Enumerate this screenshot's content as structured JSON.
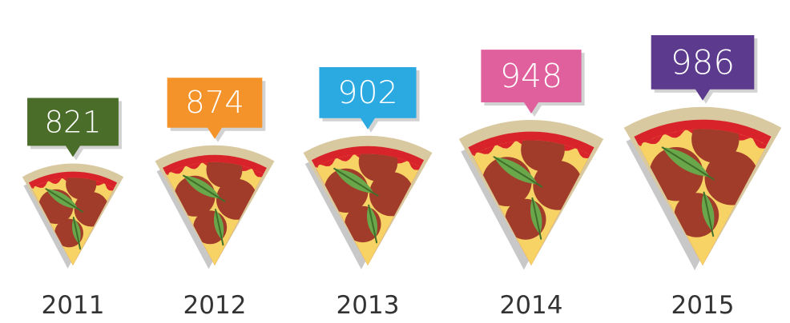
{
  "chart_data": {
    "type": "bar",
    "categories": [
      "2011",
      "2012",
      "2013",
      "2014",
      "2015"
    ],
    "values": [
      821,
      874,
      902,
      948,
      986
    ],
    "marker_colors": [
      "#4a6e2a",
      "#f3932a",
      "#2aaae1",
      "#e0609e",
      "#5c3a8e"
    ],
    "title": "",
    "xlabel": "",
    "ylabel": "",
    "mark_style": "pizza-slice",
    "grid": false,
    "legend": "none"
  },
  "colors": {
    "crust": "#d9c9a0",
    "sauce": "#d8232a",
    "cheese": "#f7d265",
    "pepperoni": "#a13c2a",
    "basil": "#6aa64a",
    "shadow": "#c8c8c8"
  }
}
